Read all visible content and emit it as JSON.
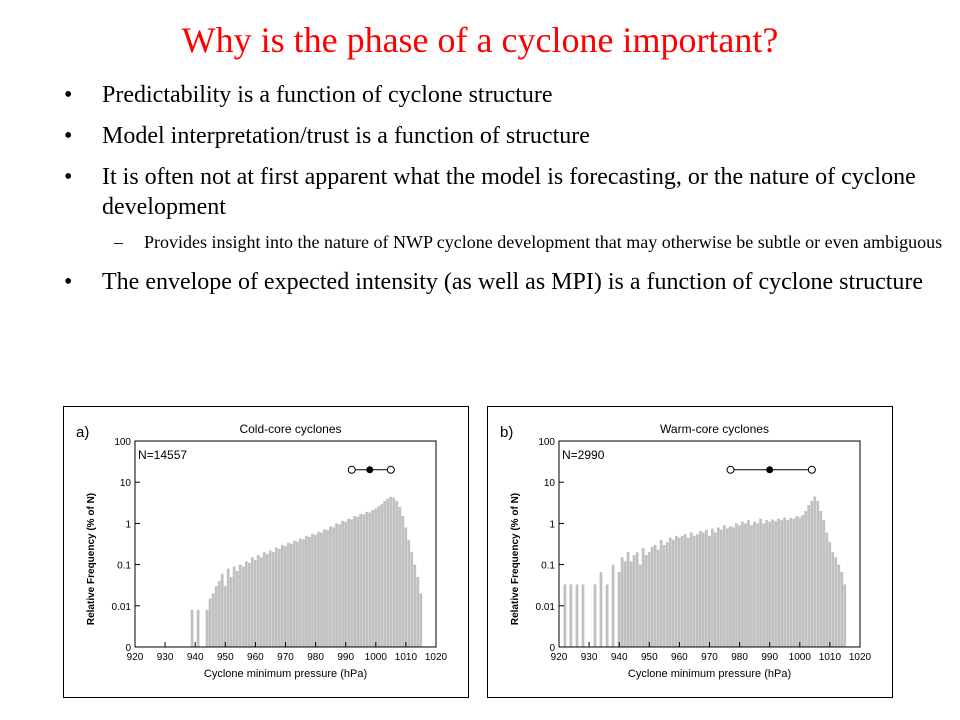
{
  "slide": {
    "title": "Why is the phase of a cyclone important?",
    "bullets": [
      "Predictability is a function of cyclone structure",
      "Model interpretation/trust is a function of structure",
      "It is often not at first apparent what the model is forecasting, or the nature of cyclone development",
      "The envelope of expected intensity (as well as MPI) is a function of cyclone structure"
    ],
    "sub_bullet": "Provides insight into the nature of NWP cyclone development that may otherwise be subtle or even ambiguous",
    "bullet_symbol": "•",
    "dash_symbol": "–"
  },
  "chart_data": [
    {
      "type": "bar",
      "panel_label": "a)",
      "title": "Cold-core cyclones",
      "count_label": "N=14557",
      "xlabel": "Cyclone minimum pressure (hPa)",
      "ylabel": "Relative Frequency (% of N)",
      "log_scale": true,
      "xlim": [
        920,
        1020
      ],
      "ylim": [
        0.001,
        100
      ],
      "x_ticks": [
        "920",
        "930",
        "940",
        "950",
        "960",
        "970",
        "980",
        "990",
        "1000",
        "1010",
        "1020"
      ],
      "y_ticks": [
        "100",
        "10",
        "1",
        "0.1",
        "0.01",
        "0"
      ],
      "bar_color": "#c0c0c0",
      "bars": [
        {
          "x": 939,
          "y": 0.008
        },
        {
          "x": 941,
          "y": 0.008
        },
        {
          "x": 944,
          "y": 0.008
        },
        {
          "x": 945,
          "y": 0.015
        },
        {
          "x": 946,
          "y": 0.02
        },
        {
          "x": 947,
          "y": 0.03
        },
        {
          "x": 948,
          "y": 0.04
        },
        {
          "x": 949,
          "y": 0.06
        },
        {
          "x": 950,
          "y": 0.03
        },
        {
          "x": 951,
          "y": 0.08
        },
        {
          "x": 952,
          "y": 0.05
        },
        {
          "x": 953,
          "y": 0.09
        },
        {
          "x": 954,
          "y": 0.07
        },
        {
          "x": 955,
          "y": 0.1
        },
        {
          "x": 956,
          "y": 0.09
        },
        {
          "x": 957,
          "y": 0.12
        },
        {
          "x": 958,
          "y": 0.11
        },
        {
          "x": 959,
          "y": 0.15
        },
        {
          "x": 960,
          "y": 0.13
        },
        {
          "x": 961,
          "y": 0.17
        },
        {
          "x": 962,
          "y": 0.15
        },
        {
          "x": 963,
          "y": 0.2
        },
        {
          "x": 964,
          "y": 0.18
        },
        {
          "x": 965,
          "y": 0.22
        },
        {
          "x": 966,
          "y": 0.2
        },
        {
          "x": 967,
          "y": 0.26
        },
        {
          "x": 968,
          "y": 0.24
        },
        {
          "x": 969,
          "y": 0.3
        },
        {
          "x": 970,
          "y": 0.28
        },
        {
          "x": 971,
          "y": 0.34
        },
        {
          "x": 972,
          "y": 0.32
        },
        {
          "x": 973,
          "y": 0.38
        },
        {
          "x": 974,
          "y": 0.36
        },
        {
          "x": 975,
          "y": 0.43
        },
        {
          "x": 976,
          "y": 0.41
        },
        {
          "x": 977,
          "y": 0.5
        },
        {
          "x": 978,
          "y": 0.47
        },
        {
          "x": 979,
          "y": 0.56
        },
        {
          "x": 980,
          "y": 0.53
        },
        {
          "x": 981,
          "y": 0.63
        },
        {
          "x": 982,
          "y": 0.6
        },
        {
          "x": 983,
          "y": 0.72
        },
        {
          "x": 984,
          "y": 0.7
        },
        {
          "x": 985,
          "y": 0.85
        },
        {
          "x": 986,
          "y": 0.8
        },
        {
          "x": 987,
          "y": 1.0
        },
        {
          "x": 988,
          "y": 0.95
        },
        {
          "x": 989,
          "y": 1.15
        },
        {
          "x": 990,
          "y": 1.1
        },
        {
          "x": 991,
          "y": 1.3
        },
        {
          "x": 992,
          "y": 1.25
        },
        {
          "x": 993,
          "y": 1.5
        },
        {
          "x": 994,
          "y": 1.45
        },
        {
          "x": 995,
          "y": 1.7
        },
        {
          "x": 996,
          "y": 1.65
        },
        {
          "x": 997,
          "y": 1.9
        },
        {
          "x": 998,
          "y": 1.85
        },
        {
          "x": 999,
          "y": 2.1
        },
        {
          "x": 1000,
          "y": 2.3
        },
        {
          "x": 1001,
          "y": 2.6
        },
        {
          "x": 1002,
          "y": 2.9
        },
        {
          "x": 1003,
          "y": 3.5
        },
        {
          "x": 1004,
          "y": 4.0
        },
        {
          "x": 1005,
          "y": 4.4
        },
        {
          "x": 1006,
          "y": 4.2
        },
        {
          "x": 1007,
          "y": 3.5
        },
        {
          "x": 1008,
          "y": 2.5
        },
        {
          "x": 1009,
          "y": 1.5
        },
        {
          "x": 1010,
          "y": 0.8
        },
        {
          "x": 1011,
          "y": 0.4
        },
        {
          "x": 1012,
          "y": 0.2
        },
        {
          "x": 1013,
          "y": 0.1
        },
        {
          "x": 1014,
          "y": 0.05
        },
        {
          "x": 1015,
          "y": 0.02
        }
      ],
      "range_markers": {
        "open_left": 992,
        "filled": 998,
        "open_right": 1005,
        "y": 20
      }
    },
    {
      "type": "bar",
      "panel_label": "b)",
      "title": "Warm-core cyclones",
      "count_label": "N=2990",
      "xlabel": "Cyclone minimum pressure (hPa)",
      "ylabel": "Relative Frequency (% of N)",
      "log_scale": true,
      "xlim": [
        920,
        1020
      ],
      "ylim": [
        0.001,
        100
      ],
      "x_ticks": [
        "920",
        "930",
        "940",
        "950",
        "960",
        "970",
        "980",
        "990",
        "1000",
        "1010",
        "1020"
      ],
      "y_ticks": [
        "100",
        "10",
        "1",
        "0.1",
        "0.01",
        "0"
      ],
      "bar_color": "#c0c0c0",
      "bars": [
        {
          "x": 922,
          "y": 0.033
        },
        {
          "x": 924,
          "y": 0.033
        },
        {
          "x": 926,
          "y": 0.033
        },
        {
          "x": 928,
          "y": 0.033
        },
        {
          "x": 932,
          "y": 0.033
        },
        {
          "x": 934,
          "y": 0.066
        },
        {
          "x": 936,
          "y": 0.033
        },
        {
          "x": 938,
          "y": 0.1
        },
        {
          "x": 940,
          "y": 0.066
        },
        {
          "x": 941,
          "y": 0.15
        },
        {
          "x": 942,
          "y": 0.12
        },
        {
          "x": 943,
          "y": 0.2
        },
        {
          "x": 944,
          "y": 0.12
        },
        {
          "x": 945,
          "y": 0.17
        },
        {
          "x": 946,
          "y": 0.2
        },
        {
          "x": 947,
          "y": 0.1
        },
        {
          "x": 948,
          "y": 0.25
        },
        {
          "x": 949,
          "y": 0.17
        },
        {
          "x": 950,
          "y": 0.2
        },
        {
          "x": 951,
          "y": 0.27
        },
        {
          "x": 952,
          "y": 0.3
        },
        {
          "x": 953,
          "y": 0.23
        },
        {
          "x": 954,
          "y": 0.4
        },
        {
          "x": 955,
          "y": 0.3
        },
        {
          "x": 956,
          "y": 0.35
        },
        {
          "x": 957,
          "y": 0.45
        },
        {
          "x": 958,
          "y": 0.4
        },
        {
          "x": 959,
          "y": 0.5
        },
        {
          "x": 960,
          "y": 0.45
        },
        {
          "x": 961,
          "y": 0.5
        },
        {
          "x": 962,
          "y": 0.55
        },
        {
          "x": 963,
          "y": 0.45
        },
        {
          "x": 964,
          "y": 0.6
        },
        {
          "x": 965,
          "y": 0.5
        },
        {
          "x": 966,
          "y": 0.55
        },
        {
          "x": 967,
          "y": 0.65
        },
        {
          "x": 968,
          "y": 0.6
        },
        {
          "x": 969,
          "y": 0.7
        },
        {
          "x": 970,
          "y": 0.5
        },
        {
          "x": 971,
          "y": 0.75
        },
        {
          "x": 972,
          "y": 0.6
        },
        {
          "x": 973,
          "y": 0.8
        },
        {
          "x": 974,
          "y": 0.7
        },
        {
          "x": 975,
          "y": 0.9
        },
        {
          "x": 976,
          "y": 0.75
        },
        {
          "x": 977,
          "y": 0.85
        },
        {
          "x": 978,
          "y": 0.8
        },
        {
          "x": 979,
          "y": 1.0
        },
        {
          "x": 980,
          "y": 0.9
        },
        {
          "x": 981,
          "y": 1.1
        },
        {
          "x": 982,
          "y": 1.0
        },
        {
          "x": 983,
          "y": 1.2
        },
        {
          "x": 984,
          "y": 0.9
        },
        {
          "x": 985,
          "y": 1.1
        },
        {
          "x": 986,
          "y": 1.0
        },
        {
          "x": 987,
          "y": 1.3
        },
        {
          "x": 988,
          "y": 1.0
        },
        {
          "x": 989,
          "y": 1.2
        },
        {
          "x": 990,
          "y": 1.1
        },
        {
          "x": 991,
          "y": 1.25
        },
        {
          "x": 992,
          "y": 1.15
        },
        {
          "x": 993,
          "y": 1.3
        },
        {
          "x": 994,
          "y": 1.2
        },
        {
          "x": 995,
          "y": 1.4
        },
        {
          "x": 996,
          "y": 1.2
        },
        {
          "x": 997,
          "y": 1.35
        },
        {
          "x": 998,
          "y": 1.3
        },
        {
          "x": 999,
          "y": 1.5
        },
        {
          "x": 1000,
          "y": 1.4
        },
        {
          "x": 1001,
          "y": 1.6
        },
        {
          "x": 1002,
          "y": 2.0
        },
        {
          "x": 1003,
          "y": 2.8
        },
        {
          "x": 1004,
          "y": 3.5
        },
        {
          "x": 1005,
          "y": 4.5
        },
        {
          "x": 1006,
          "y": 3.5
        },
        {
          "x": 1007,
          "y": 2.0
        },
        {
          "x": 1008,
          "y": 1.2
        },
        {
          "x": 1009,
          "y": 0.6
        },
        {
          "x": 1010,
          "y": 0.35
        },
        {
          "x": 1011,
          "y": 0.2
        },
        {
          "x": 1012,
          "y": 0.15
        },
        {
          "x": 1013,
          "y": 0.1
        },
        {
          "x": 1014,
          "y": 0.066
        },
        {
          "x": 1015,
          "y": 0.033
        }
      ],
      "range_markers": {
        "open_left": 977,
        "filled": 990,
        "open_right": 1004,
        "y": 20
      }
    }
  ]
}
